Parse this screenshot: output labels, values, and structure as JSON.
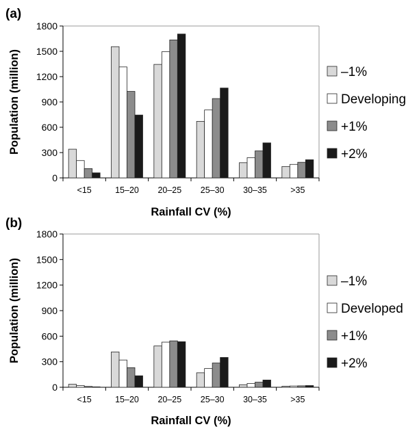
{
  "chart_data": [
    {
      "type": "bar",
      "panel_label": "(a)",
      "categories": [
        "<15",
        "15–20",
        "20–25",
        "25–30",
        "30–35",
        ">35"
      ],
      "series": [
        {
          "name": "–1%",
          "color": "#d9d9d9",
          "values": [
            340,
            1555,
            1345,
            670,
            180,
            135
          ]
        },
        {
          "name": "Developing",
          "color": "#ffffff",
          "values": [
            205,
            1315,
            1495,
            805,
            240,
            160
          ]
        },
        {
          "name": "+1%",
          "color": "#8c8c8c",
          "values": [
            110,
            1025,
            1635,
            940,
            320,
            185
          ]
        },
        {
          "name": "+2%",
          "color": "#1a1a1a",
          "values": [
            60,
            745,
            1705,
            1065,
            415,
            215
          ]
        }
      ],
      "xlabel": "Rainfall CV (%)",
      "ylabel": "Population (million)",
      "ylim": [
        0,
        1800
      ],
      "yticks": [
        "0",
        "300",
        "600",
        "900",
        "1200",
        "1500",
        "1800"
      ],
      "grid": false,
      "legend_position": "right"
    },
    {
      "type": "bar",
      "panel_label": "(b)",
      "categories": [
        "<15",
        "15–20",
        "20–25",
        "25–30",
        "30–35",
        ">35"
      ],
      "series": [
        {
          "name": "–1%",
          "color": "#d9d9d9",
          "values": [
            35,
            415,
            485,
            170,
            30,
            12
          ]
        },
        {
          "name": "Developed",
          "color": "#ffffff",
          "values": [
            20,
            320,
            530,
            220,
            45,
            15
          ]
        },
        {
          "name": "+1%",
          "color": "#8c8c8c",
          "values": [
            10,
            230,
            545,
            285,
            60,
            17
          ]
        },
        {
          "name": "+2%",
          "color": "#1a1a1a",
          "values": [
            5,
            135,
            535,
            350,
            85,
            20
          ]
        }
      ],
      "xlabel": "Rainfall CV (%)",
      "ylabel": "Population (million)",
      "ylim": [
        0,
        1800
      ],
      "yticks": [
        "0",
        "300",
        "600",
        "900",
        "1200",
        "1500",
        "1800"
      ],
      "grid": false,
      "legend_position": "right"
    }
  ]
}
